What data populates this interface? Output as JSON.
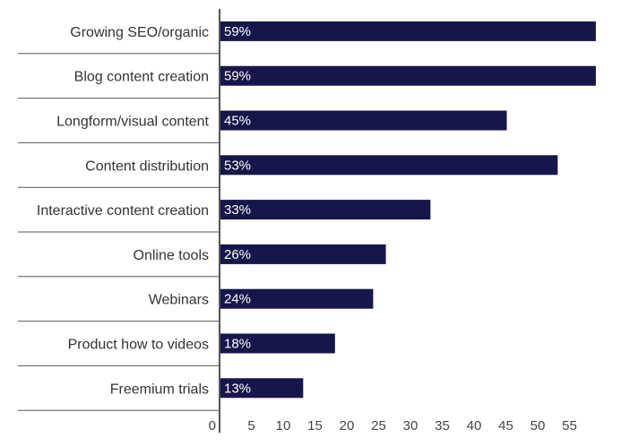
{
  "chart_data": {
    "type": "bar",
    "orientation": "horizontal",
    "title": "",
    "xlabel": "",
    "ylabel": "",
    "categories": [
      "Growing SEO/organic",
      "Blog content creation",
      "Longform/visual content",
      "Content distribution",
      "Interactive content creation",
      "Online tools",
      "Webinars",
      "Product how to videos",
      "Freemium trials"
    ],
    "values": [
      59,
      59,
      45,
      53,
      33,
      26,
      24,
      18,
      13
    ],
    "data_labels": [
      "59%",
      "59%",
      "45%",
      "53%",
      "33%",
      "26%",
      "24%",
      "18%",
      "13%"
    ],
    "xticks": [
      0,
      5,
      10,
      15,
      20,
      25,
      30,
      35,
      40,
      45,
      50,
      55
    ],
    "xlim": [
      0,
      59
    ],
    "grid": false,
    "bar_color": "#16164a"
  }
}
